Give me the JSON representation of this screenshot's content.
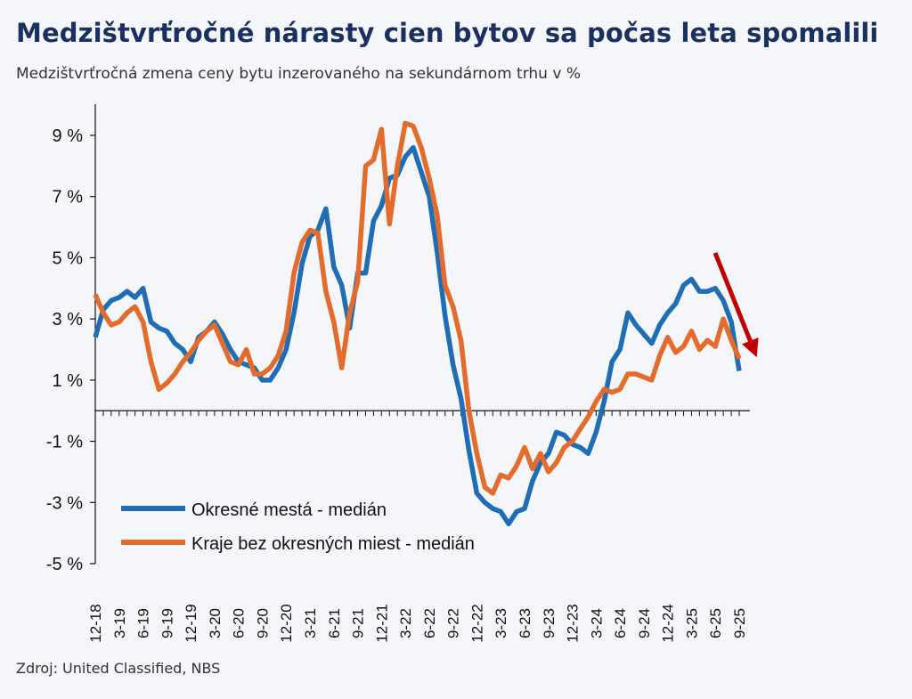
{
  "title": "Medzištvrťročné nárasty cien bytov sa počas leta spomalili",
  "subtitle": "Medzištvrťročná zmena ceny bytu inzerovaného na sekundárnom trhu v %",
  "source": "Zdroj: United Classified, NBS",
  "colors": {
    "background": "#f4f6fa",
    "title": "#1a3160",
    "series_blue": "#1f6eb5",
    "series_orange": "#e36c2d",
    "arrow": "#c00000",
    "axis": "#111111"
  },
  "chart_data": {
    "type": "line",
    "title": "Medzištvrťročné nárasty cien bytov sa počas leta spomalili",
    "xlabel": "",
    "ylabel": "",
    "ylim": [
      -5,
      10
    ],
    "yticks": [
      9,
      7,
      5,
      3,
      1,
      -1,
      -3,
      -5
    ],
    "ytick_labels": [
      "9 %",
      "7 %",
      "5 %",
      "3 %",
      "1 %",
      "-1 %",
      "-3 %",
      "-5 %"
    ],
    "x_tick_labels": [
      "12-18",
      "3-19",
      "6-19",
      "9-19",
      "12-19",
      "3-20",
      "6-20",
      "9-20",
      "12-20",
      "3-21",
      "6-21",
      "9-21",
      "12-21",
      "3-22",
      "6-22",
      "9-22",
      "12-22",
      "3-23",
      "6-23",
      "9-23",
      "12-23",
      "3-24",
      "6-24",
      "9-24",
      "12-24",
      "3-25",
      "6-25",
      "9-25"
    ],
    "x_range": [
      0,
      81
    ],
    "grid": false,
    "legend_position": "lower-left",
    "annotation": "red downward arrow at end of series",
    "series": [
      {
        "name": "Okresné mestá - medián",
        "color": "#1f6eb5",
        "points": [
          [
            0,
            2.4
          ],
          [
            1,
            3.3
          ],
          [
            2,
            3.6
          ],
          [
            3,
            3.7
          ],
          [
            4,
            3.9
          ],
          [
            5,
            3.7
          ],
          [
            6,
            4.0
          ],
          [
            7,
            2.9
          ],
          [
            8,
            2.7
          ],
          [
            9,
            2.6
          ],
          [
            10,
            2.2
          ],
          [
            11,
            2.0
          ],
          [
            12,
            1.6
          ],
          [
            13,
            2.4
          ],
          [
            14,
            2.6
          ],
          [
            15,
            2.9
          ],
          [
            16,
            2.5
          ],
          [
            17,
            2.0
          ],
          [
            18,
            1.6
          ],
          [
            19,
            1.5
          ],
          [
            20,
            1.4
          ],
          [
            21,
            1.0
          ],
          [
            22,
            1.0
          ],
          [
            23,
            1.4
          ],
          [
            24,
            2.0
          ],
          [
            25,
            3.2
          ],
          [
            26,
            4.8
          ],
          [
            27,
            5.7
          ],
          [
            28,
            5.9
          ],
          [
            29,
            6.6
          ],
          [
            30,
            4.7
          ],
          [
            31,
            4.1
          ],
          [
            32,
            2.7
          ],
          [
            33,
            4.5
          ],
          [
            34,
            4.5
          ],
          [
            35,
            6.2
          ],
          [
            36,
            6.7
          ],
          [
            37,
            7.6
          ],
          [
            38,
            7.7
          ],
          [
            39,
            8.3
          ],
          [
            40,
            8.6
          ],
          [
            41,
            7.8
          ],
          [
            42,
            7.0
          ],
          [
            43,
            5.2
          ],
          [
            44,
            3.1
          ],
          [
            45,
            1.5
          ],
          [
            46,
            0.4
          ],
          [
            47,
            -1.3
          ],
          [
            48,
            -2.7
          ],
          [
            49,
            -3.0
          ],
          [
            50,
            -3.2
          ],
          [
            51,
            -3.3
          ],
          [
            52,
            -3.7
          ],
          [
            53,
            -3.3
          ],
          [
            54,
            -3.2
          ],
          [
            55,
            -2.3
          ],
          [
            56,
            -1.7
          ],
          [
            57,
            -1.4
          ],
          [
            58,
            -0.7
          ],
          [
            59,
            -0.8
          ],
          [
            60,
            -1.1
          ],
          [
            61,
            -1.2
          ],
          [
            62,
            -1.4
          ],
          [
            63,
            -0.7
          ],
          [
            64,
            0.3
          ],
          [
            65,
            1.6
          ],
          [
            66,
            2.0
          ],
          [
            67,
            3.2
          ],
          [
            68,
            2.8
          ],
          [
            69,
            2.5
          ],
          [
            70,
            2.2
          ],
          [
            71,
            2.8
          ],
          [
            72,
            3.2
          ],
          [
            73,
            3.5
          ],
          [
            74,
            4.1
          ],
          [
            75,
            4.3
          ],
          [
            76,
            3.9
          ],
          [
            77,
            3.9
          ],
          [
            78,
            4.0
          ],
          [
            79,
            3.6
          ],
          [
            80,
            2.9
          ],
          [
            81,
            1.3
          ]
        ]
      },
      {
        "name": "Kraje bez okresných miest - medián",
        "color": "#e36c2d",
        "points": [
          [
            0,
            3.8
          ],
          [
            1,
            3.2
          ],
          [
            2,
            2.8
          ],
          [
            3,
            2.9
          ],
          [
            4,
            3.2
          ],
          [
            5,
            3.4
          ],
          [
            6,
            2.9
          ],
          [
            7,
            1.6
          ],
          [
            8,
            0.7
          ],
          [
            9,
            0.9
          ],
          [
            10,
            1.2
          ],
          [
            11,
            1.6
          ],
          [
            12,
            1.9
          ],
          [
            13,
            2.3
          ],
          [
            14,
            2.6
          ],
          [
            15,
            2.8
          ],
          [
            16,
            2.2
          ],
          [
            17,
            1.6
          ],
          [
            18,
            1.5
          ],
          [
            19,
            2.0
          ],
          [
            20,
            1.2
          ],
          [
            21,
            1.2
          ],
          [
            22,
            1.4
          ],
          [
            23,
            1.8
          ],
          [
            24,
            2.6
          ],
          [
            25,
            4.5
          ],
          [
            26,
            5.5
          ],
          [
            27,
            5.9
          ],
          [
            28,
            5.8
          ],
          [
            29,
            3.9
          ],
          [
            30,
            2.9
          ],
          [
            31,
            1.4
          ],
          [
            32,
            3.2
          ],
          [
            33,
            4.2
          ],
          [
            34,
            8.0
          ],
          [
            35,
            8.2
          ],
          [
            36,
            9.2
          ],
          [
            37,
            6.1
          ],
          [
            38,
            8.0
          ],
          [
            39,
            9.4
          ],
          [
            40,
            9.3
          ],
          [
            41,
            8.6
          ],
          [
            42,
            7.6
          ],
          [
            43,
            6.4
          ],
          [
            44,
            4.1
          ],
          [
            45,
            3.4
          ],
          [
            46,
            2.3
          ],
          [
            47,
            0.0
          ],
          [
            48,
            -1.4
          ],
          [
            49,
            -2.5
          ],
          [
            50,
            -2.7
          ],
          [
            51,
            -2.1
          ],
          [
            52,
            -2.2
          ],
          [
            53,
            -1.8
          ],
          [
            54,
            -1.2
          ],
          [
            55,
            -1.9
          ],
          [
            56,
            -1.4
          ],
          [
            57,
            -2.0
          ],
          [
            58,
            -1.7
          ],
          [
            59,
            -1.2
          ],
          [
            60,
            -1.0
          ],
          [
            61,
            -0.6
          ],
          [
            62,
            -0.2
          ],
          [
            63,
            0.3
          ],
          [
            64,
            0.7
          ],
          [
            65,
            0.6
          ],
          [
            66,
            0.7
          ],
          [
            67,
            1.2
          ],
          [
            68,
            1.2
          ],
          [
            69,
            1.1
          ],
          [
            70,
            1.0
          ],
          [
            71,
            1.8
          ],
          [
            72,
            2.4
          ],
          [
            73,
            1.9
          ],
          [
            74,
            2.1
          ],
          [
            75,
            2.6
          ],
          [
            76,
            2.0
          ],
          [
            77,
            2.3
          ],
          [
            78,
            2.1
          ],
          [
            79,
            3.0
          ],
          [
            80,
            2.3
          ],
          [
            81,
            1.7
          ]
        ]
      }
    ]
  }
}
